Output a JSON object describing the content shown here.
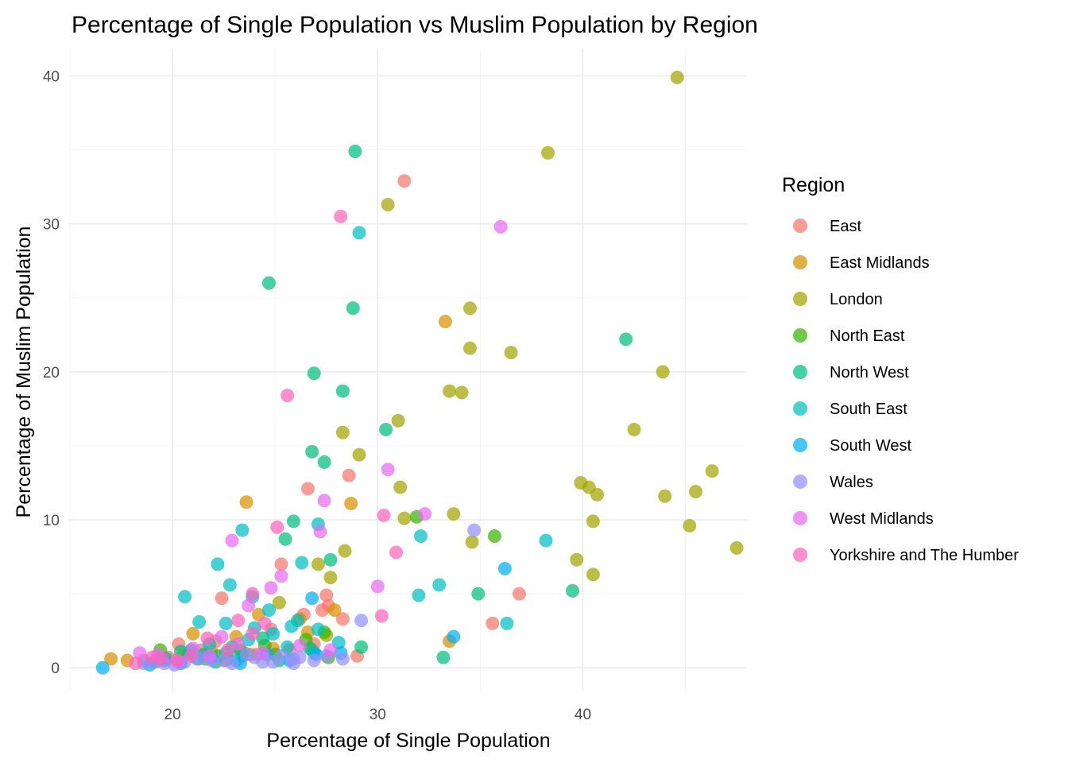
{
  "chart_data": {
    "type": "scatter",
    "title": "Percentage of Single Population vs Muslim Population by Region",
    "xlabel": "Percentage of Single Population",
    "ylabel": "Percentage of Muslim Population",
    "xlim": [
      15,
      48
    ],
    "ylim": [
      -1.6,
      41.8
    ],
    "x_ticks": [
      20,
      30,
      40
    ],
    "y_ticks": [
      0,
      10,
      20,
      30,
      40
    ],
    "grid": true,
    "legend": {
      "title": "Region",
      "position": "right"
    },
    "series": [
      {
        "name": "East",
        "color": "#F8766D",
        "points": [
          [
            31.3,
            32.9
          ],
          [
            28.6,
            13.0
          ],
          [
            26.6,
            12.1
          ],
          [
            35.6,
            3.0
          ],
          [
            36.9,
            5.0
          ],
          [
            25.3,
            7.0
          ],
          [
            22.4,
            4.7
          ],
          [
            27.5,
            4.9
          ],
          [
            28.3,
            3.3
          ],
          [
            27.3,
            3.9
          ],
          [
            26.4,
            3.6
          ],
          [
            27.6,
            4.2
          ],
          [
            24.8,
            2.6
          ],
          [
            22.1,
            1.8
          ],
          [
            20.3,
            1.6
          ],
          [
            21.4,
            1.2
          ],
          [
            23.5,
            1.0
          ],
          [
            19.8,
            0.7
          ],
          [
            18.6,
            0.5
          ],
          [
            24.1,
            0.9
          ],
          [
            26.9,
            1.6
          ],
          [
            25.7,
            1.2
          ],
          [
            22.7,
            0.6
          ],
          [
            29.0,
            0.8
          ]
        ]
      },
      {
        "name": "East Midlands",
        "color": "#D89000",
        "points": [
          [
            33.3,
            23.4
          ],
          [
            23.6,
            11.2
          ],
          [
            28.7,
            11.1
          ],
          [
            33.5,
            1.8
          ],
          [
            24.2,
            3.6
          ],
          [
            27.9,
            3.9
          ],
          [
            26.2,
            3.3
          ],
          [
            23.1,
            2.1
          ],
          [
            21.0,
            2.3
          ],
          [
            17.0,
            0.6
          ],
          [
            17.8,
            0.5
          ],
          [
            19.2,
            0.4
          ],
          [
            22.6,
            0.5
          ],
          [
            24.9,
            1.3
          ],
          [
            20.5,
            0.8
          ],
          [
            26.6,
            2.4
          ],
          [
            21.9,
            1.1
          ],
          [
            23.8,
            0.9
          ]
        ]
      },
      {
        "name": "London",
        "color": "#A3A500",
        "points": [
          [
            44.6,
            39.9
          ],
          [
            38.3,
            34.8
          ],
          [
            30.5,
            31.3
          ],
          [
            34.5,
            24.3
          ],
          [
            34.5,
            21.6
          ],
          [
            36.5,
            21.3
          ],
          [
            43.9,
            20.0
          ],
          [
            33.5,
            18.7
          ],
          [
            34.1,
            18.6
          ],
          [
            31.0,
            16.7
          ],
          [
            42.5,
            16.1
          ],
          [
            28.3,
            15.9
          ],
          [
            29.1,
            14.4
          ],
          [
            46.3,
            13.3
          ],
          [
            39.9,
            12.5
          ],
          [
            40.3,
            12.2
          ],
          [
            31.1,
            12.2
          ],
          [
            45.5,
            11.9
          ],
          [
            40.7,
            11.7
          ],
          [
            44.0,
            11.6
          ],
          [
            33.7,
            10.4
          ],
          [
            31.3,
            10.1
          ],
          [
            40.5,
            9.9
          ],
          [
            45.2,
            9.6
          ],
          [
            34.6,
            8.5
          ],
          [
            47.5,
            8.1
          ],
          [
            28.4,
            7.9
          ],
          [
            39.7,
            7.3
          ],
          [
            27.7,
            6.1
          ],
          [
            40.5,
            6.3
          ],
          [
            27.1,
            7.0
          ],
          [
            25.2,
            4.4
          ],
          [
            27.5,
            2.2
          ],
          [
            26.8,
            1.2
          ]
        ]
      },
      {
        "name": "North East",
        "color": "#39B600",
        "points": [
          [
            35.7,
            8.9
          ],
          [
            31.9,
            10.2
          ],
          [
            27.4,
            2.4
          ],
          [
            24.5,
            1.5
          ],
          [
            19.4,
            1.2
          ],
          [
            20.8,
            1.0
          ],
          [
            22.2,
            0.8
          ],
          [
            27.6,
            0.7
          ],
          [
            23.3,
            1.2
          ],
          [
            26.5,
            1.9
          ],
          [
            21.6,
            0.6
          ],
          [
            25.0,
            0.9
          ]
        ]
      },
      {
        "name": "North West",
        "color": "#00BF7D",
        "points": [
          [
            28.9,
            34.9
          ],
          [
            24.7,
            26.0
          ],
          [
            28.8,
            24.3
          ],
          [
            42.1,
            22.2
          ],
          [
            26.9,
            19.9
          ],
          [
            28.3,
            18.7
          ],
          [
            30.4,
            16.1
          ],
          [
            26.8,
            14.6
          ],
          [
            27.4,
            13.9
          ],
          [
            25.9,
            9.9
          ],
          [
            25.5,
            8.7
          ],
          [
            27.7,
            7.3
          ],
          [
            34.9,
            5.0
          ],
          [
            39.5,
            5.2
          ],
          [
            33.2,
            0.7
          ],
          [
            29.2,
            1.4
          ],
          [
            24.4,
            2.0
          ],
          [
            22.9,
            1.4
          ],
          [
            21.5,
            0.9
          ],
          [
            19.7,
            0.6
          ],
          [
            25.2,
            0.5
          ],
          [
            26.7,
            1.3
          ],
          [
            23.4,
            0.8
          ],
          [
            20.4,
            1.1
          ],
          [
            22.1,
            0.4
          ]
        ]
      },
      {
        "name": "South East",
        "color": "#00BFC4",
        "points": [
          [
            29.1,
            29.4
          ],
          [
            23.4,
            9.3
          ],
          [
            32.1,
            8.9
          ],
          [
            38.2,
            8.6
          ],
          [
            26.3,
            7.1
          ],
          [
            22.2,
            7.0
          ],
          [
            22.8,
            5.6
          ],
          [
            33.0,
            5.6
          ],
          [
            32.0,
            4.9
          ],
          [
            20.6,
            4.8
          ],
          [
            23.9,
            4.8
          ],
          [
            36.3,
            3.0
          ],
          [
            21.3,
            3.1
          ],
          [
            22.6,
            3.0
          ],
          [
            24.7,
            3.9
          ],
          [
            25.8,
            2.8
          ],
          [
            27.1,
            2.6
          ],
          [
            28.1,
            1.7
          ],
          [
            24.0,
            2.7
          ],
          [
            26.1,
            3.2
          ],
          [
            20.9,
            1.2
          ],
          [
            21.8,
            1.6
          ],
          [
            22.6,
            1.0
          ],
          [
            23.7,
            1.9
          ],
          [
            24.9,
            2.3
          ],
          [
            25.6,
            1.4
          ],
          [
            19.4,
            0.6
          ],
          [
            20.4,
            0.3
          ],
          [
            23.1,
            0.5
          ],
          [
            26.9,
            1.0
          ],
          [
            21.2,
            0.6
          ],
          [
            27.1,
            9.7
          ]
        ]
      },
      {
        "name": "South West",
        "color": "#00B0F6",
        "points": [
          [
            16.6,
            0.0
          ],
          [
            36.2,
            6.7
          ],
          [
            33.7,
            2.1
          ],
          [
            26.8,
            4.7
          ],
          [
            28.2,
            1.0
          ],
          [
            18.9,
            0.2
          ],
          [
            20.4,
            0.4
          ],
          [
            21.9,
            0.7
          ],
          [
            23.3,
            0.3
          ],
          [
            24.6,
            0.9
          ],
          [
            25.7,
            0.5
          ],
          [
            27.0,
            0.9
          ],
          [
            19.6,
            0.5
          ]
        ]
      },
      {
        "name": "Wales",
        "color": "#9590FF",
        "points": [
          [
            34.7,
            9.3
          ],
          [
            29.2,
            3.2
          ],
          [
            28.3,
            0.6
          ],
          [
            26.9,
            0.5
          ],
          [
            25.9,
            0.6
          ],
          [
            24.9,
            0.4
          ],
          [
            24.0,
            0.7
          ],
          [
            22.9,
            0.3
          ],
          [
            21.9,
            0.5
          ],
          [
            20.6,
            0.4
          ],
          [
            19.6,
            0.3
          ],
          [
            18.6,
            0.3
          ],
          [
            23.6,
            0.9
          ],
          [
            25.3,
            0.8
          ],
          [
            26.2,
            0.7
          ],
          [
            27.5,
            0.8
          ],
          [
            21.3,
            0.6
          ],
          [
            22.5,
            0.5
          ],
          [
            20.1,
            0.2
          ],
          [
            24.4,
            0.4
          ],
          [
            25.9,
            0.3
          ],
          [
            19.1,
            0.4
          ]
        ]
      },
      {
        "name": "West Midlands",
        "color": "#E76BF3",
        "points": [
          [
            36.0,
            29.8
          ],
          [
            30.5,
            13.4
          ],
          [
            32.3,
            10.4
          ],
          [
            27.4,
            11.3
          ],
          [
            22.9,
            8.6
          ],
          [
            27.2,
            9.2
          ],
          [
            25.3,
            6.2
          ],
          [
            30.0,
            5.5
          ],
          [
            24.8,
            5.4
          ],
          [
            23.7,
            4.2
          ],
          [
            18.4,
            1.0
          ],
          [
            21.0,
            1.3
          ],
          [
            22.4,
            2.1
          ],
          [
            24.4,
            1.0
          ],
          [
            26.2,
            1.5
          ],
          [
            27.7,
            1.2
          ],
          [
            20.3,
            0.4
          ],
          [
            19.3,
            0.9
          ],
          [
            23.2,
            1.6
          ],
          [
            21.8,
            0.8
          ]
        ]
      },
      {
        "name": "Yorkshire and The Humber",
        "color": "#FF62BC",
        "points": [
          [
            28.2,
            30.5
          ],
          [
            25.6,
            18.4
          ],
          [
            30.3,
            10.3
          ],
          [
            25.1,
            9.5
          ],
          [
            30.9,
            7.8
          ],
          [
            23.9,
            5.0
          ],
          [
            30.2,
            3.5
          ],
          [
            23.2,
            3.2
          ],
          [
            18.2,
            0.3
          ],
          [
            19.5,
            0.6
          ],
          [
            20.9,
            0.8
          ],
          [
            21.7,
            2.0
          ],
          [
            23.9,
            2.3
          ],
          [
            24.5,
            3.0
          ],
          [
            22.7,
            1.2
          ],
          [
            20.2,
            0.5
          ],
          [
            19.0,
            0.7
          ]
        ]
      }
    ]
  }
}
